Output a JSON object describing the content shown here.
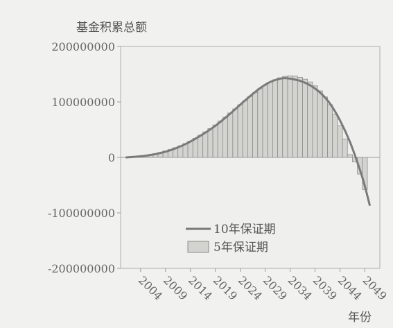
{
  "chart_data": {
    "type": "bar",
    "ylabel": "基金积累总额",
    "xlabel": "年份",
    "ylim": [
      -200000000,
      200000000
    ],
    "yticks": [
      "200000000",
      "100000000",
      "0",
      "-100000000",
      "-200000000"
    ],
    "ytick_values": [
      200000000,
      100000000,
      0,
      -100000000,
      -200000000
    ],
    "x_tick_labels": [
      "2004",
      "2009",
      "2014",
      "2019",
      "2024",
      "2029",
      "2034",
      "2039",
      "2044",
      "2049"
    ],
    "x_tick_years": [
      2004,
      2009,
      2014,
      2019,
      2024,
      2029,
      2034,
      2039,
      2044,
      2049
    ],
    "xlim": [
      2000,
      2052
    ],
    "legend_position": "bottom-center",
    "grid": false,
    "series": [
      {
        "name": "10年保证期",
        "kind": "line",
        "color": "#7a7a7a",
        "x": [
          2001,
          2004,
          2007,
          2010,
          2013,
          2016,
          2019,
          2022,
          2025,
          2028,
          2030,
          2032,
          2033,
          2034,
          2036,
          2038,
          2040,
          2042,
          2044,
          2046,
          2048,
          2049,
          2050
        ],
        "values": [
          0,
          2000000,
          6000000,
          13000000,
          24000000,
          39000000,
          57000000,
          79000000,
          103000000,
          125000000,
          136000000,
          142000000,
          143000000,
          142000000,
          138000000,
          130000000,
          117000000,
          97000000,
          67000000,
          28000000,
          -22000000,
          -52000000,
          -87000000
        ]
      },
      {
        "name": "5年保证期",
        "kind": "bar",
        "color": "#d3d3d0",
        "x": [
          2002,
          2003,
          2004,
          2005,
          2006,
          2007,
          2008,
          2009,
          2010,
          2011,
          2012,
          2013,
          2014,
          2015,
          2016,
          2017,
          2018,
          2019,
          2020,
          2021,
          2022,
          2023,
          2024,
          2025,
          2026,
          2027,
          2028,
          2029,
          2030,
          2031,
          2032,
          2033,
          2034,
          2035,
          2036,
          2037,
          2038,
          2039,
          2040,
          2041,
          2042,
          2043,
          2044,
          2045,
          2046,
          2047,
          2048,
          2049
        ],
        "values": [
          1000000,
          1800000,
          2700000,
          3800000,
          5200000,
          7000000,
          9000000,
          11500000,
          14200000,
          17500000,
          21000000,
          25000000,
          29500000,
          34500000,
          40000000,
          46000000,
          52000000,
          58500000,
          65500000,
          72500000,
          80000000,
          87500000,
          95000000,
          102500000,
          110000000,
          117000000,
          124000000,
          130000000,
          135500000,
          140000000,
          143500000,
          146000000,
          147000000,
          146500000,
          144500000,
          141000000,
          136000000,
          129000000,
          120000000,
          109000000,
          95000000,
          78000000,
          57000000,
          33000000,
          5000000,
          -8000000,
          -30000000,
          -58000000
        ]
      }
    ]
  }
}
